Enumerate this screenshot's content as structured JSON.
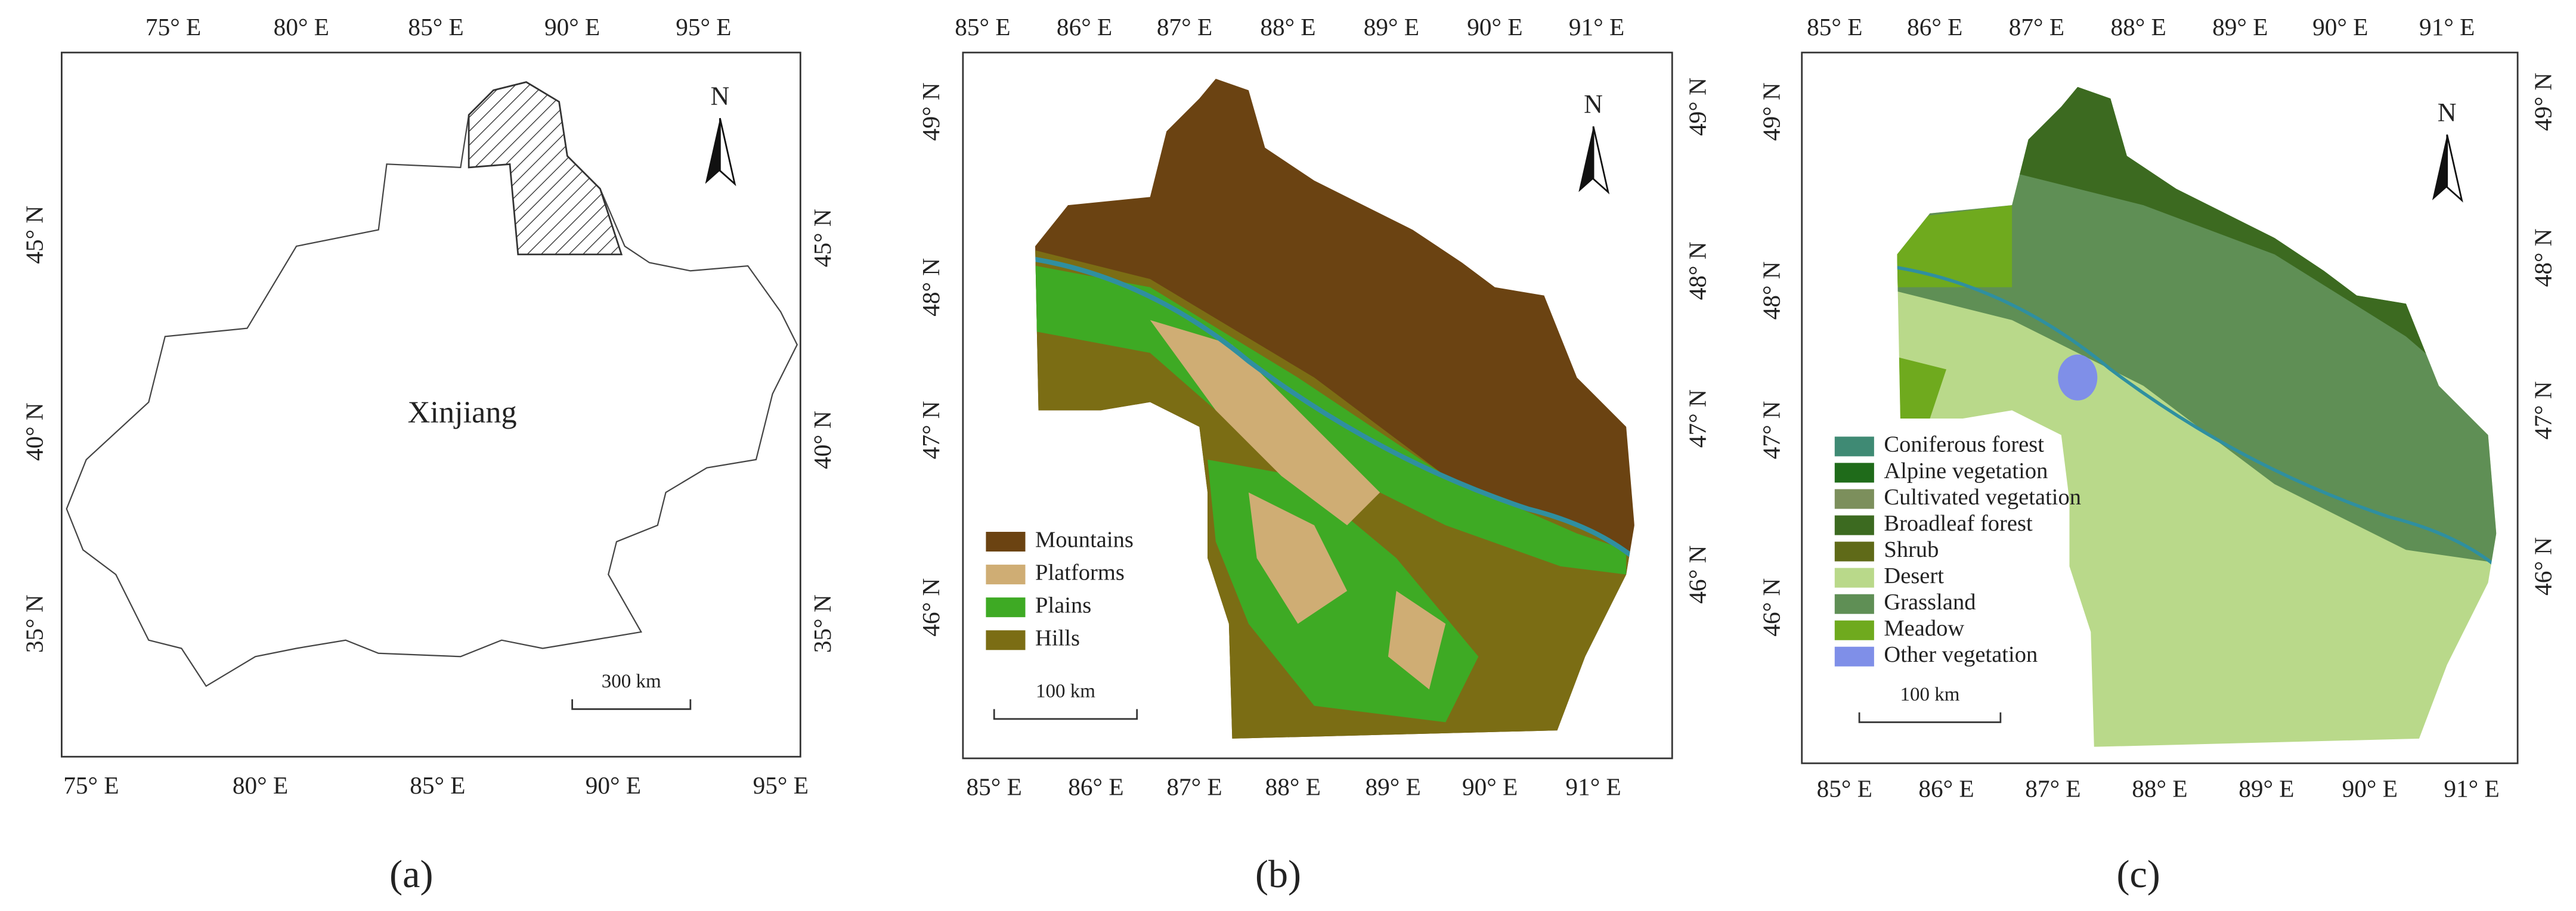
{
  "panels": [
    {
      "label": "(a)",
      "top_ticks": [
        "75° E",
        "80° E",
        "85° E",
        "90° E",
        "95° E"
      ],
      "bottom_ticks": [
        "75° E",
        "80° E",
        "85° E",
        "90° E",
        "95° E"
      ],
      "left_ticks": [
        "45° N",
        "40° N",
        "35° N"
      ],
      "right_ticks": [
        "45° N",
        "40° N",
        "35° N"
      ],
      "place_label": "Xinjiang",
      "north": "N",
      "scale": "300 km"
    },
    {
      "label": "(b)",
      "top_ticks": [
        "85° E",
        "86° E",
        "87° E",
        "88° E",
        "89° E",
        "90° E",
        "91° E"
      ],
      "bottom_ticks": [
        "85° E",
        "86° E",
        "87° E",
        "88° E",
        "89° E",
        "90° E",
        "91° E"
      ],
      "left_ticks": [
        "49° N",
        "48° N",
        "47° N",
        "46° N"
      ],
      "right_ticks": [
        "49° N",
        "48° N",
        "47° N",
        "46° N"
      ],
      "north": "N",
      "scale": "100 km",
      "legend": [
        {
          "name": "Mountains",
          "color": "#6b4312"
        },
        {
          "name": "Platforms",
          "color": "#cfad74"
        },
        {
          "name": "Plains",
          "color": "#3eaa24"
        },
        {
          "name": "Hills",
          "color": "#7b6d14"
        }
      ]
    },
    {
      "label": "(c)",
      "top_ticks": [
        "85° E",
        "86° E",
        "87° E",
        "88° E",
        "89° E",
        "90° E",
        "91° E"
      ],
      "bottom_ticks": [
        "85° E",
        "86° E",
        "87° E",
        "88° E",
        "89° E",
        "90° E",
        "91° E"
      ],
      "left_ticks": [
        "49° N",
        "48° N",
        "47° N",
        "46° N"
      ],
      "right_ticks": [
        "49° N",
        "48° N",
        "47° N",
        "46° N"
      ],
      "north": "N",
      "scale": "100 km",
      "legend": [
        {
          "name": "Coniferous forest",
          "color": "#3f8a74"
        },
        {
          "name": "Alpine vegetation",
          "color": "#1f6b1a"
        },
        {
          "name": "Cultivated vegetation",
          "color": "#7c8f5c"
        },
        {
          "name": "Broadleaf forest",
          "color": "#3c6a20"
        },
        {
          "name": "Shrub",
          "color": "#5f6a18"
        },
        {
          "name": "Desert",
          "color": "#b9d98a"
        },
        {
          "name": "Grassland",
          "color": "#5f8f55"
        },
        {
          "name": "Meadow",
          "color": "#6faa1e"
        },
        {
          "name": "Other vegetation",
          "color": "#7f8fe8"
        }
      ]
    }
  ]
}
